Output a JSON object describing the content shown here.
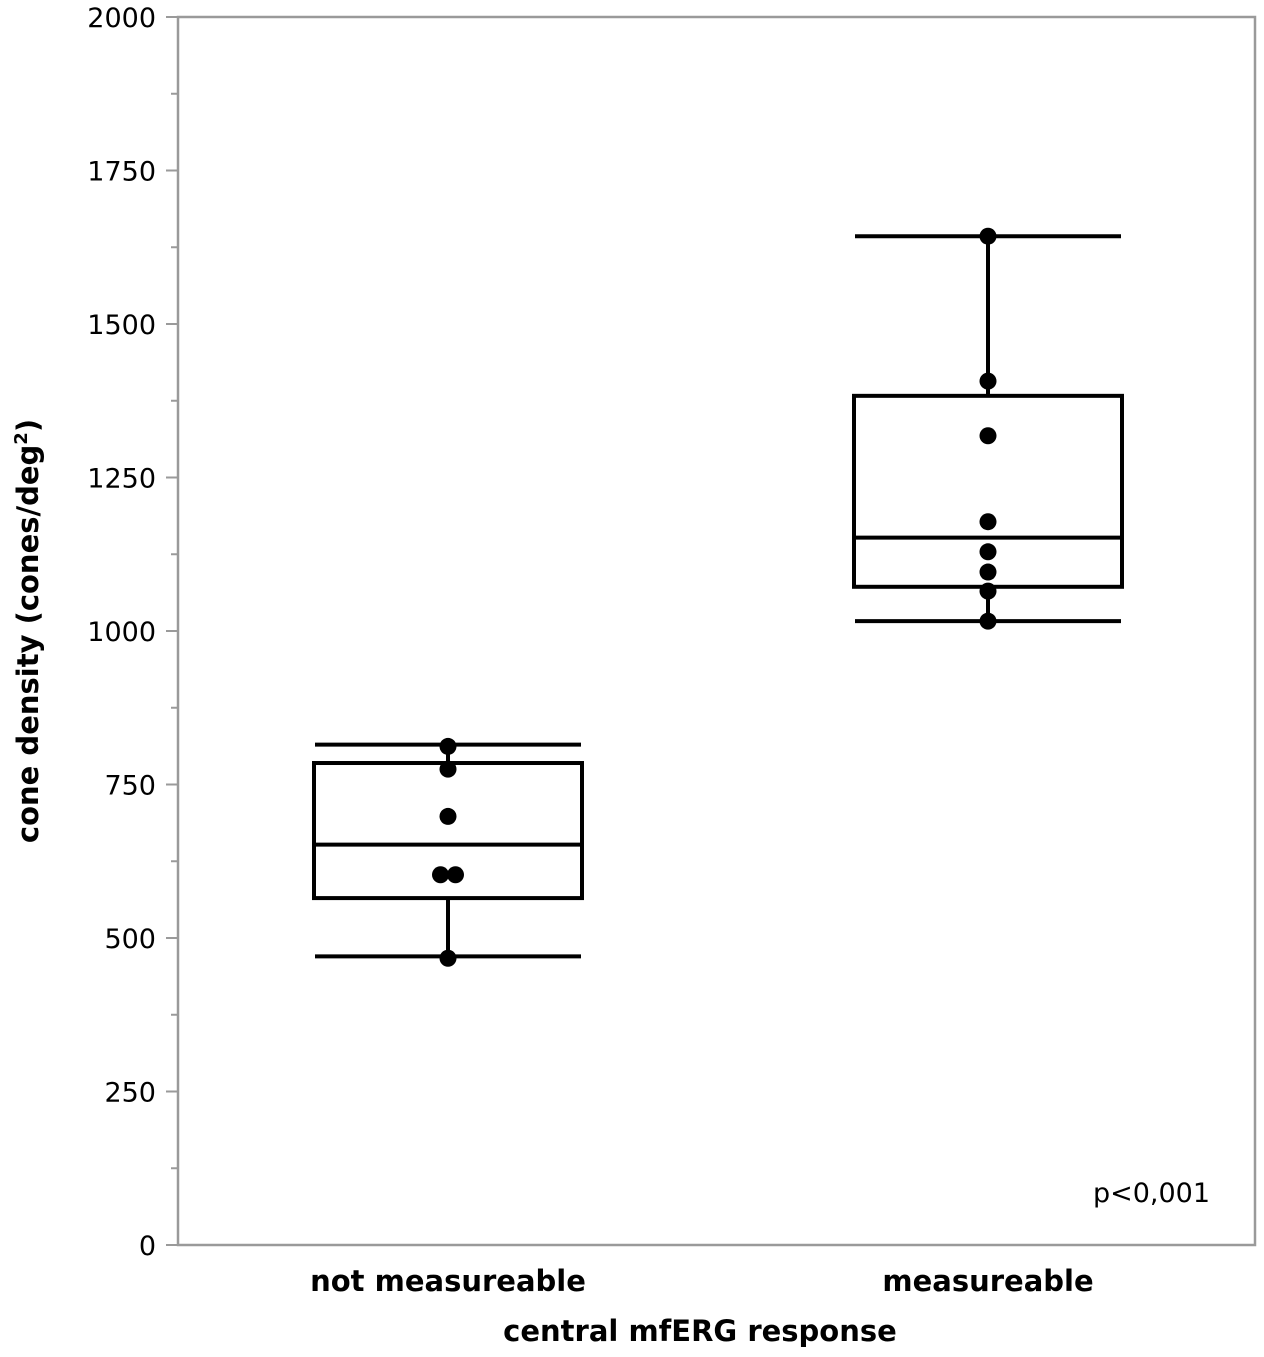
{
  "chart_data": {
    "type": "box",
    "xlabel": "central mfERG response",
    "ylabel_main": "cone density (cones/deg",
    "ylabel_sup": "2",
    "ylabel_tail": ")",
    "ylim": [
      0,
      2000
    ],
    "yticks": [
      0,
      250,
      500,
      750,
      1000,
      1250,
      1500,
      1750,
      2000
    ],
    "ytick_labels": [
      "0",
      "250",
      "500",
      "750",
      "1000",
      "1250",
      "1500",
      "1750",
      "2000"
    ],
    "minor_ticks": [
      125,
      375,
      625,
      875,
      1125,
      1375,
      1625,
      1875
    ],
    "grid": false,
    "annotation": "p<0,001",
    "groups": [
      {
        "category": "not measureable",
        "whisker_low": 470,
        "q1": 565,
        "median": 652,
        "q3": 785,
        "whisker_high": 815,
        "points": [
          {
            "x_offset": 0,
            "y": 812
          },
          {
            "x_offset": 0,
            "y": 775
          },
          {
            "x_offset": 0,
            "y": 698
          },
          {
            "x_offset": -0.3,
            "y": 603
          },
          {
            "x_offset": 0.3,
            "y": 603
          },
          {
            "x_offset": 0,
            "y": 467
          }
        ]
      },
      {
        "category": "measureable",
        "whisker_low": 1016,
        "q1": 1072,
        "median": 1152,
        "q3": 1383,
        "whisker_high": 1643,
        "points": [
          {
            "x_offset": 0,
            "y": 1643
          },
          {
            "x_offset": 0,
            "y": 1407
          },
          {
            "x_offset": 0,
            "y": 1318
          },
          {
            "x_offset": 0,
            "y": 1178
          },
          {
            "x_offset": 0,
            "y": 1129
          },
          {
            "x_offset": 0,
            "y": 1096
          },
          {
            "x_offset": 0,
            "y": 1065
          },
          {
            "x_offset": 0,
            "y": 1016
          }
        ]
      }
    ]
  }
}
